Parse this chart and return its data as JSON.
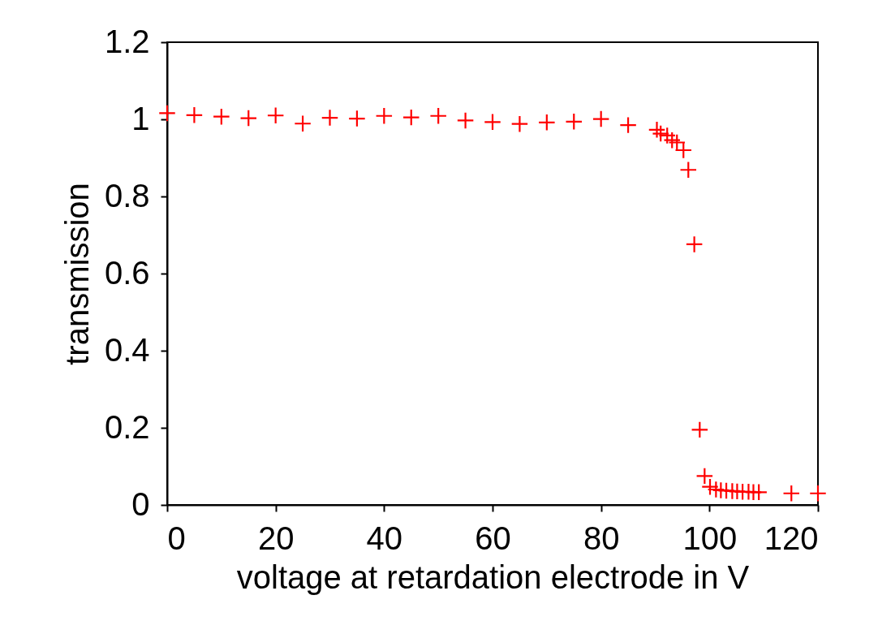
{
  "chart_data": {
    "type": "scatter",
    "xlabel": "voltage at retardation electrode in V",
    "ylabel": "transmission",
    "x": [
      0,
      5,
      10,
      15,
      20,
      25,
      30,
      35,
      40,
      45,
      50,
      55,
      60,
      65,
      70,
      75,
      80,
      85,
      90.3,
      91,
      92.2,
      93.1,
      94,
      95.2,
      96.1,
      97.2,
      98.2,
      99.1,
      100.1,
      101.2,
      102.1,
      103.1,
      104.2,
      105.1,
      106.1,
      107.2,
      108.1,
      109.1,
      115.1,
      120
    ],
    "series": [
      {
        "color": "#ff0000",
        "values": [
          1.016,
          1.011,
          1.007,
          1.003,
          1.01,
          0.989,
          1.004,
          1.002,
          1.009,
          1.005,
          1.009,
          0.997,
          0.993,
          0.988,
          0.992,
          0.994,
          1.001,
          0.985,
          0.973,
          0.963,
          0.958,
          0.946,
          0.94,
          0.92,
          0.869,
          0.676,
          0.195,
          0.075,
          0.047,
          0.04,
          0.038,
          0.037,
          0.036,
          0.035,
          0.034,
          0.034,
          0.033,
          0.033,
          0.03,
          0.03
        ]
      }
    ],
    "xlim": [
      0,
      120
    ],
    "xticks": [
      0,
      20,
      40,
      60,
      80,
      100,
      120
    ],
    "ylim": [
      0,
      1.2
    ],
    "yticks": [
      0,
      0.2,
      0.4,
      0.6,
      0.8,
      1,
      1.2
    ],
    "marker": "cross",
    "grid": false,
    "legend": false
  }
}
